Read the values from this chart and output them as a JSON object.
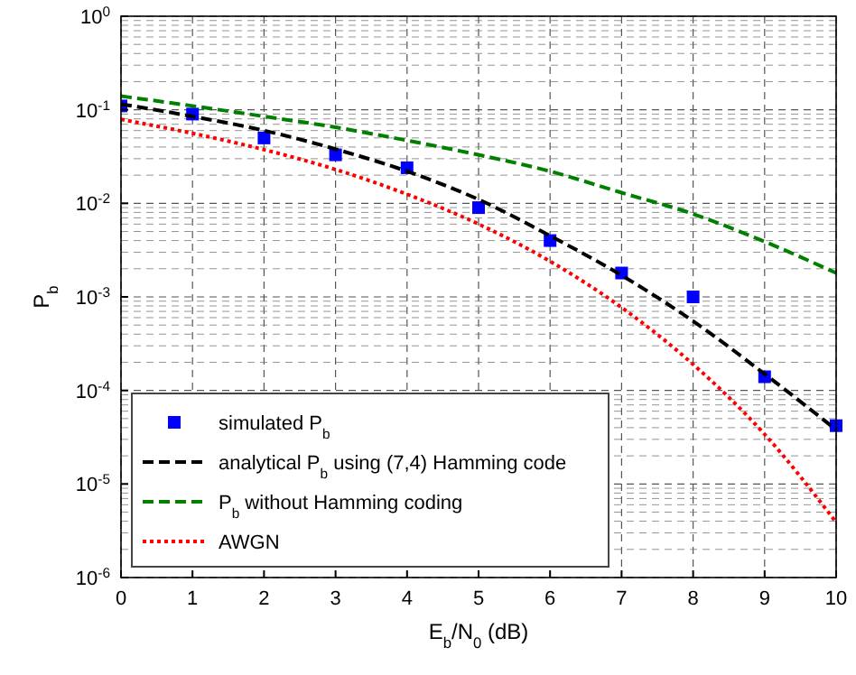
{
  "chart_data": {
    "type": "line",
    "xlabel": "E$_{b}$/N$_{0}$ (dB)",
    "ylabel": "P$_{b}$",
    "x": [
      0,
      1,
      2,
      3,
      4,
      5,
      6,
      7,
      8,
      9,
      10
    ],
    "series": [
      {
        "name": "simulated P$_{b}$",
        "type": "scatter",
        "color": "#0000ff",
        "marker": "square",
        "values": [
          0.11,
          0.09,
          0.05,
          0.033,
          0.024,
          0.009,
          0.004,
          0.0018,
          0.001,
          0.00014,
          4.2e-05
        ]
      },
      {
        "name": "analytical P$_{b}$ using (7,4) Hamming code",
        "color": "#000000",
        "line_style": "dashed",
        "values": [
          0.115,
          0.085,
          0.06,
          0.038,
          0.022,
          0.011,
          0.0045,
          0.0017,
          0.00055,
          0.00015,
          3.8e-05
        ]
      },
      {
        "name": "P$_{b}$ without Hamming coding",
        "color": "#008000",
        "line_style": "dashed",
        "values": [
          0.14,
          0.11,
          0.085,
          0.065,
          0.047,
          0.033,
          0.022,
          0.013,
          0.0077,
          0.0039,
          0.0018
        ]
      },
      {
        "name": "AWGN",
        "color": "#ff0000",
        "line_style": "dotted",
        "values": [
          0.079,
          0.056,
          0.0375,
          0.023,
          0.0125,
          0.006,
          0.0024,
          0.00077,
          0.00019,
          3.4e-05,
          3.9e-06
        ]
      }
    ],
    "xlim": [
      0,
      10
    ],
    "xticks": [
      0,
      1,
      2,
      3,
      4,
      5,
      6,
      7,
      8,
      9,
      10
    ],
    "ylim": [
      1e-06,
      1
    ],
    "yticks": [
      {
        "value": 1e-06,
        "label": "10$^{-6}$"
      },
      {
        "value": 1e-05,
        "label": "10$^{-5}$"
      },
      {
        "value": 0.0001,
        "label": "10$^{-4}$"
      },
      {
        "value": 0.001,
        "label": "10$^{-3}$"
      },
      {
        "value": 0.01,
        "label": "10$^{-2}$"
      },
      {
        "value": 0.1,
        "label": "10$^{-1}$"
      },
      {
        "value": 1,
        "label": "10$^{0}$"
      }
    ],
    "log": true,
    "grid": true,
    "legend": "bottom left"
  }
}
